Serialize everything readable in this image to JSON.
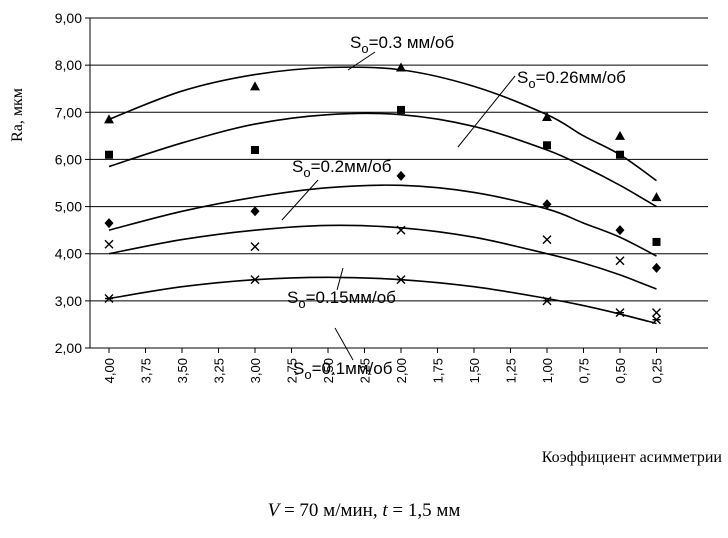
{
  "chart_data": {
    "type": "scatter",
    "xlabel": "Коэффициент асимметрии",
    "ylabel": "Ra, мкм",
    "xlim": [
      4.0,
      0.25
    ],
    "x_reversed": true,
    "ylim": [
      2.0,
      9.0
    ],
    "x_ticks": [
      "4,00",
      "3,75",
      "3,50",
      "3,25",
      "3,00",
      "2,75",
      "2,50",
      "2,25",
      "2,00",
      "1,75",
      "1,50",
      "1,25",
      "1,00",
      "0,75",
      "0,50",
      "0,25"
    ],
    "y_ticks": [
      "2,00",
      "3,00",
      "4,00",
      "5,00",
      "6,00",
      "7,00",
      "8,00",
      "9,00"
    ],
    "grid": "horizontal",
    "series": [
      {
        "name": "So=0.3 мм/об",
        "label_sub": {
          "main": "S",
          "sub": "o",
          "rest": "=0.3 мм/об"
        },
        "marker": "triangle",
        "x": [
          4.0,
          3.0,
          2.0,
          1.0,
          0.5,
          0.25
        ],
        "y": [
          6.85,
          7.55,
          7.95,
          6.9,
          6.5,
          5.2
        ],
        "trend": [
          [
            4.0,
            6.85
          ],
          [
            3.5,
            7.45
          ],
          [
            3.0,
            7.8
          ],
          [
            2.5,
            7.95
          ],
          [
            2.0,
            7.9
          ],
          [
            1.5,
            7.55
          ],
          [
            1.0,
            6.95
          ],
          [
            0.75,
            6.5
          ],
          [
            0.5,
            6.1
          ],
          [
            0.25,
            5.55
          ]
        ]
      },
      {
        "name": "So=0.26мм/об",
        "label_sub": {
          "main": "S",
          "sub": "o",
          "rest": "=0.26мм/об"
        },
        "marker": "square",
        "x": [
          4.0,
          3.0,
          2.0,
          1.0,
          0.5,
          0.25
        ],
        "y": [
          6.1,
          6.2,
          7.05,
          6.3,
          6.1,
          4.25
        ],
        "trend": [
          [
            4.0,
            5.85
          ],
          [
            3.5,
            6.35
          ],
          [
            3.0,
            6.75
          ],
          [
            2.5,
            6.95
          ],
          [
            2.0,
            6.95
          ],
          [
            1.5,
            6.7
          ],
          [
            1.0,
            6.2
          ],
          [
            0.75,
            5.85
          ],
          [
            0.5,
            5.45
          ],
          [
            0.25,
            5.0
          ]
        ]
      },
      {
        "name": "So=0.2мм/об",
        "label_sub": {
          "main": "S",
          "sub": "o",
          "rest": "=0.2мм/об"
        },
        "marker": "diamond",
        "x": [
          4.0,
          3.0,
          2.0,
          1.0,
          0.5,
          0.25
        ],
        "y": [
          4.65,
          4.9,
          5.65,
          5.05,
          4.5,
          3.7
        ],
        "trend": [
          [
            4.0,
            4.5
          ],
          [
            3.5,
            4.9
          ],
          [
            3.0,
            5.2
          ],
          [
            2.5,
            5.4
          ],
          [
            2.0,
            5.45
          ],
          [
            1.5,
            5.3
          ],
          [
            1.0,
            4.95
          ],
          [
            0.75,
            4.65
          ],
          [
            0.5,
            4.35
          ],
          [
            0.25,
            3.95
          ]
        ]
      },
      {
        "name": "So=0.15мм/об",
        "label_sub": {
          "main": "S",
          "sub": "o",
          "rest": "=0.15мм/об"
        },
        "marker": "x",
        "x": [
          4.0,
          3.0,
          2.0,
          1.0,
          0.5,
          0.25
        ],
        "y": [
          4.2,
          4.15,
          4.5,
          4.3,
          3.85,
          2.75
        ],
        "trend": [
          [
            4.0,
            4.0
          ],
          [
            3.5,
            4.3
          ],
          [
            3.0,
            4.5
          ],
          [
            2.5,
            4.6
          ],
          [
            2.0,
            4.55
          ],
          [
            1.5,
            4.35
          ],
          [
            1.0,
            4.0
          ],
          [
            0.75,
            3.8
          ],
          [
            0.5,
            3.55
          ],
          [
            0.25,
            3.25
          ]
        ]
      },
      {
        "name": "So=0.1мм/об",
        "label_sub": {
          "main": "S",
          "sub": "o",
          "rest": "=0.1мм/об"
        },
        "marker": "star",
        "x": [
          4.0,
          3.0,
          2.0,
          1.0,
          0.5,
          0.25
        ],
        "y": [
          3.05,
          3.45,
          3.45,
          3.0,
          2.75,
          2.6
        ],
        "trend": [
          [
            4.0,
            3.05
          ],
          [
            3.5,
            3.3
          ],
          [
            3.0,
            3.45
          ],
          [
            2.5,
            3.5
          ],
          [
            2.0,
            3.45
          ],
          [
            1.5,
            3.3
          ],
          [
            1.0,
            3.05
          ],
          [
            0.75,
            2.9
          ],
          [
            0.5,
            2.72
          ],
          [
            0.25,
            2.52
          ]
        ]
      }
    ]
  },
  "caption": {
    "v_symbol": "V",
    "v_text": " = 70 м/мин, ",
    "t_symbol": "t",
    "t_text": " = 1,5 мм"
  }
}
